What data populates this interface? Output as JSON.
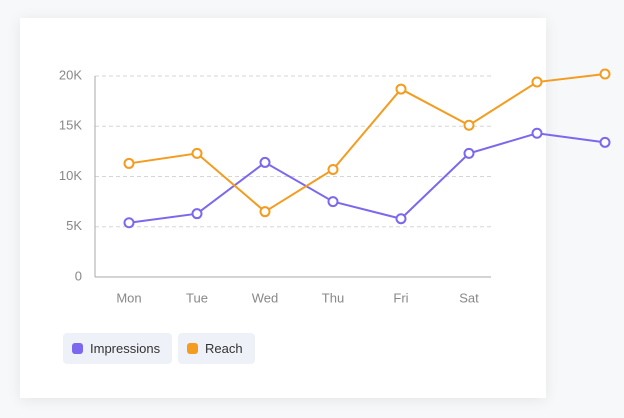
{
  "chart_data": {
    "type": "line",
    "categories": [
      "Mon",
      "Tue",
      "Wed",
      "Thu",
      "Fri",
      "Sat",
      null,
      null
    ],
    "series": [
      {
        "name": "Impressions",
        "color": "#7b68ee",
        "values": [
          5400,
          6300,
          11400,
          7500,
          5800,
          12300,
          14300,
          13400
        ]
      },
      {
        "name": "Reach",
        "color": "#f39c1f",
        "values": [
          11300,
          12300,
          6500,
          10700,
          18700,
          15100,
          19400,
          20200
        ]
      }
    ],
    "ylim": [
      0,
      20000
    ],
    "yticks": [
      0,
      {
        "value": 5000,
        "label": "5K"
      },
      {
        "value": 10000,
        "label": "10K"
      },
      {
        "value": 15000,
        "label": "15K"
      },
      {
        "value": 20000,
        "label": "20K"
      }
    ],
    "grid": true
  }
}
